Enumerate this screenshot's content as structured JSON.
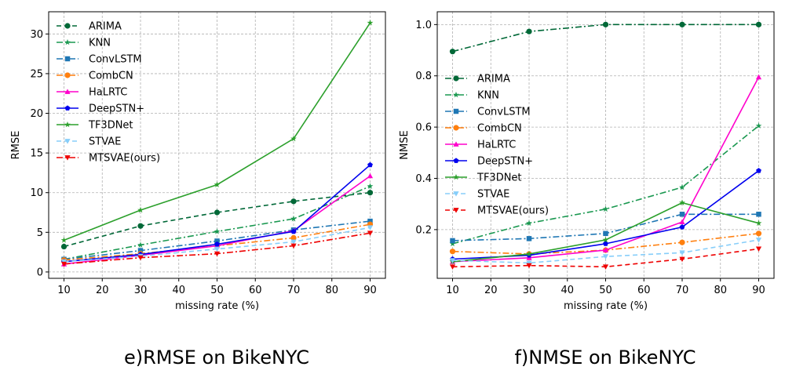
{
  "chart_data": [
    {
      "type": "line",
      "caption": "e)RMSE on BikeNYC",
      "xlabel": "missing rate (%)",
      "ylabel": "RMSE",
      "x": [
        10,
        30,
        50,
        70,
        90
      ],
      "xlim": [
        6,
        94
      ],
      "ylim": [
        -0.8,
        32.8
      ],
      "xticks": [
        10,
        20,
        30,
        40,
        50,
        60,
        70,
        80,
        90
      ],
      "yticks": [
        0,
        5,
        10,
        15,
        20,
        25,
        30
      ],
      "grid": true,
      "legend_position": "upper-left",
      "series": [
        {
          "name": "ARIMA",
          "values": [
            3.2,
            5.8,
            7.5,
            8.9,
            10.0
          ],
          "color": "#006837",
          "dash": "dash",
          "marker": "circle"
        },
        {
          "name": "KNN",
          "values": [
            1.6,
            3.4,
            5.1,
            6.7,
            10.8
          ],
          "color": "#1a9850",
          "dash": "dashdot",
          "marker": "star"
        },
        {
          "name": "ConvLSTM",
          "values": [
            1.6,
            2.7,
            3.9,
            5.3,
            6.4
          ],
          "color": "#1f77b4",
          "dash": "dashdot",
          "marker": "square"
        },
        {
          "name": "CombCN",
          "values": [
            1.5,
            2.3,
            3.3,
            4.3,
            6.0
          ],
          "color": "#ff7f0e",
          "dash": "dashdot",
          "marker": "circle"
        },
        {
          "name": "HaLRTC",
          "values": [
            1.0,
            2.1,
            3.3,
            5.2,
            12.1
          ],
          "color": "#ff00cc",
          "dash": "solid",
          "marker": "triangle-up"
        },
        {
          "name": "DeepSTN+",
          "values": [
            1.3,
            2.2,
            3.5,
            5.1,
            13.5
          ],
          "color": "#0000ee",
          "dash": "solid",
          "marker": "pentagon"
        },
        {
          "name": "TF3DNet",
          "values": [
            4.0,
            7.8,
            11.0,
            16.8,
            31.4
          ],
          "color": "#2ca02c",
          "dash": "solid",
          "marker": "star"
        },
        {
          "name": "STVAE",
          "values": [
            1.3,
            2.0,
            2.9,
            3.8,
            5.6
          ],
          "color": "#87cefa",
          "dash": "dash",
          "marker": "triangle-down"
        },
        {
          "name": "MTSVAE(ours)",
          "values": [
            1.0,
            1.8,
            2.3,
            3.3,
            4.9
          ],
          "color": "#ee0000",
          "dash": "dashdot",
          "marker": "triangle-down"
        }
      ]
    },
    {
      "type": "line",
      "caption": "f)NMSE on BikeNYC",
      "xlabel": "missing rate (%)",
      "ylabel": "NMSE",
      "x": [
        10,
        30,
        50,
        70,
        90
      ],
      "xlim": [
        6,
        94
      ],
      "ylim": [
        0.01,
        1.05
      ],
      "xticks": [
        10,
        20,
        30,
        40,
        50,
        60,
        70,
        80,
        90
      ],
      "yticks": [
        0.2,
        0.4,
        0.6,
        0.8,
        1.0
      ],
      "ytick_labels": [
        "0.2",
        "0.4",
        "0.6",
        "0.8",
        "1.0"
      ],
      "grid": true,
      "legend_position": "center-left",
      "series": [
        {
          "name": "ARIMA",
          "values": [
            0.895,
            0.973,
            1.0,
            1.0,
            1.0
          ],
          "color": "#006837",
          "dash": "dashdot",
          "marker": "circle"
        },
        {
          "name": "KNN",
          "values": [
            0.145,
            0.225,
            0.28,
            0.365,
            0.605
          ],
          "color": "#1a9850",
          "dash": "dashdot",
          "marker": "star"
        },
        {
          "name": "ConvLSTM",
          "values": [
            0.157,
            0.165,
            0.185,
            0.26,
            0.26
          ],
          "color": "#1f77b4",
          "dash": "dashdot",
          "marker": "square"
        },
        {
          "name": "CombCN",
          "values": [
            0.115,
            0.105,
            0.12,
            0.15,
            0.185
          ],
          "color": "#ff7f0e",
          "dash": "dashdot",
          "marker": "circle"
        },
        {
          "name": "HaLRTC",
          "values": [
            0.075,
            0.09,
            0.12,
            0.23,
            0.795
          ],
          "color": "#ff00cc",
          "dash": "solid",
          "marker": "triangle-up"
        },
        {
          "name": "DeepSTN+",
          "values": [
            0.085,
            0.1,
            0.145,
            0.21,
            0.43
          ],
          "color": "#0000ee",
          "dash": "solid",
          "marker": "pentagon"
        },
        {
          "name": "TF3DNet",
          "values": [
            0.075,
            0.105,
            0.16,
            0.305,
            0.225
          ],
          "color": "#2ca02c",
          "dash": "solid",
          "marker": "star"
        },
        {
          "name": "STVAE",
          "values": [
            0.08,
            0.07,
            0.095,
            0.11,
            0.16
          ],
          "color": "#87cefa",
          "dash": "dash",
          "marker": "triangle-down"
        },
        {
          "name": "MTSVAE(ours)",
          "values": [
            0.055,
            0.06,
            0.055,
            0.085,
            0.125
          ],
          "color": "#ee0000",
          "dash": "dash",
          "marker": "triangle-down"
        }
      ]
    }
  ]
}
